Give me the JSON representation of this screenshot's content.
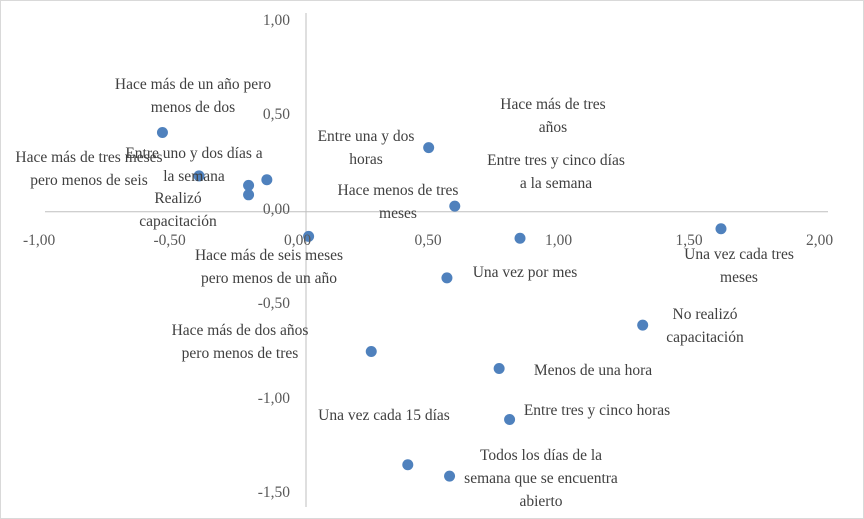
{
  "chart_data": {
    "type": "scatter",
    "title": "",
    "xlabel": "",
    "ylabel": "",
    "xlim": [
      -1.0,
      2.0
    ],
    "ylim": [
      -1.5,
      1.0
    ],
    "grid": false,
    "legend": "none",
    "x_ticks": [
      "-1,00",
      "-0,50",
      "0,00",
      "0,50",
      "1,00",
      "1,50",
      "2,00"
    ],
    "y_ticks": [
      "1,00",
      "0,50",
      "0,00",
      "-0,50",
      "-1,00",
      "-1,50"
    ],
    "marker_color": "#4f81bd",
    "points": [
      {
        "x": -0.55,
        "y": 0.42,
        "label": "Hace más de un año pero menos de dos"
      },
      {
        "x": 0.82,
        "y": -0.14,
        "label": "Hace más de tres años"
      },
      {
        "x": 0.47,
        "y": 0.34,
        "label": "Entre una y dos horas"
      },
      {
        "x": -0.22,
        "y": 0.09,
        "label": "Hace más de tres meses pero menos de seis"
      },
      {
        "x": -0.41,
        "y": 0.19,
        "label": "Entre uno y dos días a la semana"
      },
      {
        "x": -0.22,
        "y": 0.14,
        "label": "Realizó capacitación"
      },
      {
        "x": -0.15,
        "y": 0.17,
        "label": "Entre tres y cinco días a la semana"
      },
      {
        "x": 0.57,
        "y": 0.03,
        "label": "Hace menos de tres meses"
      },
      {
        "x": 0.01,
        "y": -0.13,
        "label": "Hace más de seis meses pero menos de un año"
      },
      {
        "x": 0.54,
        "y": -0.35,
        "label": "Una vez por mes"
      },
      {
        "x": 1.59,
        "y": -0.09,
        "label": "Una vez cada tres meses"
      },
      {
        "x": 1.29,
        "y": -0.6,
        "label": "No realizó capacitación"
      },
      {
        "x": 0.25,
        "y": -0.74,
        "label": "Hace más de dos años pero menos de tres"
      },
      {
        "x": 0.74,
        "y": -0.83,
        "label": "Menos de una hora"
      },
      {
        "x": 0.39,
        "y": -1.34,
        "label": "Una vez cada 15 días"
      },
      {
        "x": 0.78,
        "y": -1.1,
        "label": "Entre tres y cinco horas"
      },
      {
        "x": 0.55,
        "y": -1.4,
        "label": "Todos los días de la semana que se encuentra abierto"
      }
    ]
  }
}
